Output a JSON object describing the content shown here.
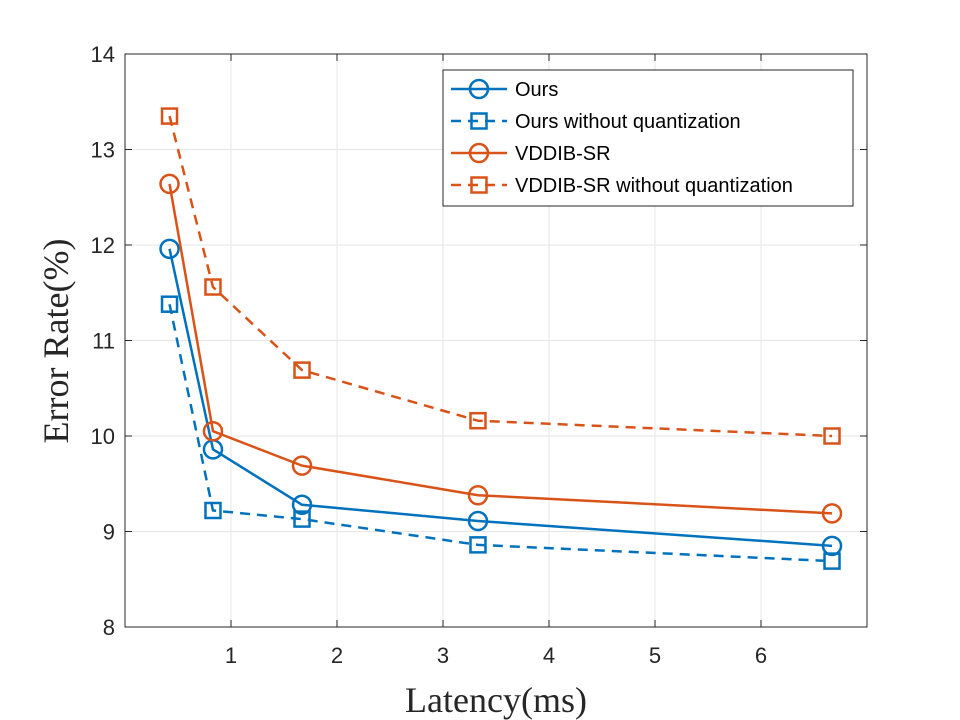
{
  "chart_data": {
    "type": "line",
    "title": "",
    "xlabel": "Latency(ms)",
    "ylabel": "Error Rate(%)",
    "xlim": [
      0.0,
      7.0
    ],
    "ylim": [
      8,
      14
    ],
    "xticks": [
      1,
      2,
      3,
      4,
      5,
      6
    ],
    "yticks": [
      8,
      9,
      10,
      11,
      12,
      13,
      14
    ],
    "grid": true,
    "legend_position": "top-right",
    "series": [
      {
        "name": "Ours",
        "color": "#0072BD",
        "line_style": "solid",
        "marker": "circle",
        "x": [
          0.42,
          0.83,
          1.67,
          3.33,
          6.67
        ],
        "y": [
          11.96,
          9.86,
          9.28,
          9.11,
          8.85
        ]
      },
      {
        "name": "Ours without quantization",
        "color": "#0072BD",
        "line_style": "dashed",
        "marker": "square",
        "x": [
          0.42,
          0.83,
          1.67,
          3.33,
          6.67
        ],
        "y": [
          11.38,
          9.22,
          9.13,
          8.86,
          8.69
        ]
      },
      {
        "name": "VDDIB-SR",
        "color": "#D95319",
        "line_style": "solid",
        "marker": "circle",
        "x": [
          0.42,
          0.83,
          1.67,
          3.33,
          6.67
        ],
        "y": [
          12.64,
          10.05,
          9.69,
          9.38,
          9.19
        ]
      },
      {
        "name": "VDDIB-SR without quantization",
        "color": "#D95319",
        "line_style": "dashed",
        "marker": "square",
        "x": [
          0.42,
          0.83,
          1.67,
          3.33,
          6.67
        ],
        "y": [
          13.35,
          11.56,
          10.69,
          10.16,
          10.0
        ]
      }
    ]
  }
}
